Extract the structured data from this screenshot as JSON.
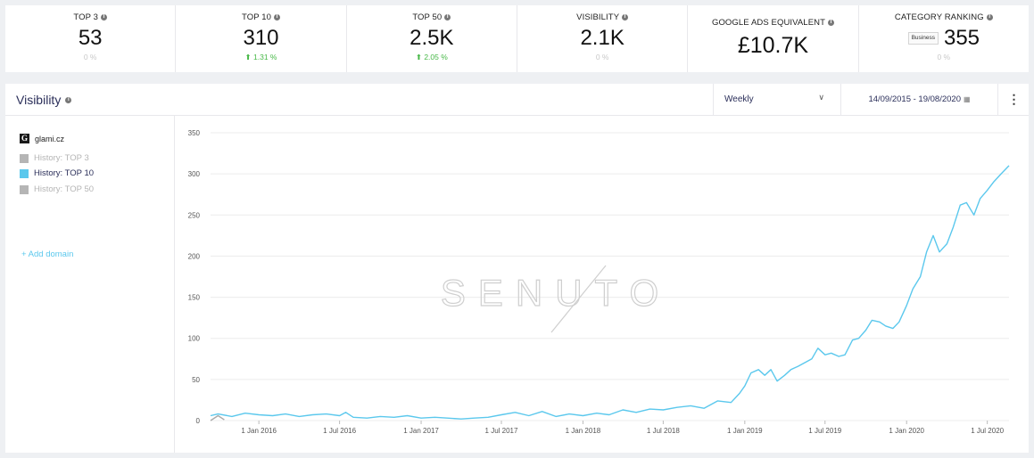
{
  "stats": [
    {
      "label": "TOP 3",
      "value": "53",
      "change": "0 %",
      "trend": "none"
    },
    {
      "label": "TOP 10",
      "value": "310",
      "change": "1.31 %",
      "trend": "up"
    },
    {
      "label": "TOP 50",
      "value": "2.5K",
      "change": "2.05 %",
      "trend": "up"
    },
    {
      "label": "VISIBILITY",
      "value": "2.1K",
      "change": "0 %",
      "trend": "none"
    },
    {
      "label": "GOOGLE ADS EQUIVALENT",
      "value": "£10.7K",
      "change": "",
      "trend": "none"
    },
    {
      "label": "CATEGORY RANKING",
      "value": "355",
      "badge": "Business",
      "change": "0 %",
      "trend": "none"
    }
  ],
  "panel": {
    "title": "Visibility",
    "period": "Weekly",
    "date_range": "14/09/2015 - 19/08/2020"
  },
  "legend": {
    "domain": "glami.cz",
    "domain_icon": "G",
    "items": [
      {
        "label": "History: TOP 3",
        "active": false
      },
      {
        "label": "History: TOP 10",
        "active": true
      },
      {
        "label": "History: TOP 50",
        "active": false
      }
    ],
    "add_domain": "+ Add domain"
  },
  "watermark": "SENUTO",
  "colors": {
    "line": "#5bc8ed",
    "grid": "#ececec",
    "positive": "#47b847",
    "title": "#2b2f5a"
  },
  "chart_data": {
    "type": "line",
    "title": "",
    "xlabel": "",
    "ylabel": "",
    "ylim": [
      0,
      350
    ],
    "yticks": [
      0,
      50,
      100,
      150,
      200,
      250,
      300,
      350
    ],
    "xlim": [
      "2015-09-14",
      "2020-08-19"
    ],
    "xticks": [
      {
        "date": "2016-01-01",
        "label": "1 Jan 2016"
      },
      {
        "date": "2016-07-01",
        "label": "1 Jul 2016"
      },
      {
        "date": "2017-01-01",
        "label": "1 Jan 2017"
      },
      {
        "date": "2017-07-01",
        "label": "1 Jul 2017"
      },
      {
        "date": "2018-01-01",
        "label": "1 Jan 2018"
      },
      {
        "date": "2018-07-01",
        "label": "1 Jul 2018"
      },
      {
        "date": "2019-01-01",
        "label": "1 Jan 2019"
      },
      {
        "date": "2019-07-01",
        "label": "1 Jul 2019"
      },
      {
        "date": "2020-01-01",
        "label": "1 Jan 2020"
      },
      {
        "date": "2020-07-01",
        "label": "1 Jul 2020"
      }
    ],
    "grid": true,
    "series": [
      {
        "name": "History: TOP 10",
        "points": [
          [
            "2015-09-14",
            6
          ],
          [
            "2015-10-01",
            8
          ],
          [
            "2015-11-01",
            5
          ],
          [
            "2015-12-01",
            9
          ],
          [
            "2016-01-01",
            7
          ],
          [
            "2016-02-01",
            6
          ],
          [
            "2016-03-01",
            8
          ],
          [
            "2016-04-01",
            5
          ],
          [
            "2016-05-01",
            7
          ],
          [
            "2016-06-01",
            8
          ],
          [
            "2016-07-01",
            6
          ],
          [
            "2016-07-15",
            10
          ],
          [
            "2016-08-01",
            4
          ],
          [
            "2016-09-01",
            3
          ],
          [
            "2016-10-01",
            5
          ],
          [
            "2016-11-01",
            4
          ],
          [
            "2016-12-01",
            6
          ],
          [
            "2017-01-01",
            3
          ],
          [
            "2017-02-01",
            4
          ],
          [
            "2017-03-01",
            3
          ],
          [
            "2017-04-01",
            2
          ],
          [
            "2017-05-01",
            3
          ],
          [
            "2017-06-01",
            4
          ],
          [
            "2017-07-01",
            7
          ],
          [
            "2017-08-01",
            10
          ],
          [
            "2017-09-01",
            6
          ],
          [
            "2017-10-01",
            11
          ],
          [
            "2017-11-01",
            5
          ],
          [
            "2017-12-01",
            8
          ],
          [
            "2018-01-01",
            6
          ],
          [
            "2018-02-01",
            9
          ],
          [
            "2018-03-01",
            7
          ],
          [
            "2018-04-01",
            13
          ],
          [
            "2018-05-01",
            10
          ],
          [
            "2018-06-01",
            14
          ],
          [
            "2018-07-01",
            13
          ],
          [
            "2018-08-01",
            16
          ],
          [
            "2018-09-01",
            18
          ],
          [
            "2018-10-01",
            15
          ],
          [
            "2018-11-01",
            24
          ],
          [
            "2018-12-01",
            22
          ],
          [
            "2018-12-20",
            33
          ],
          [
            "2019-01-01",
            42
          ],
          [
            "2019-01-15",
            58
          ],
          [
            "2019-02-01",
            62
          ],
          [
            "2019-02-15",
            55
          ],
          [
            "2019-03-01",
            62
          ],
          [
            "2019-03-15",
            48
          ],
          [
            "2019-04-01",
            55
          ],
          [
            "2019-04-15",
            62
          ],
          [
            "2019-05-01",
            66
          ],
          [
            "2019-05-15",
            70
          ],
          [
            "2019-06-01",
            75
          ],
          [
            "2019-06-15",
            88
          ],
          [
            "2019-07-01",
            80
          ],
          [
            "2019-07-15",
            82
          ],
          [
            "2019-08-01",
            78
          ],
          [
            "2019-08-15",
            80
          ],
          [
            "2019-09-01",
            98
          ],
          [
            "2019-09-15",
            100
          ],
          [
            "2019-10-01",
            110
          ],
          [
            "2019-10-15",
            122
          ],
          [
            "2019-11-01",
            120
          ],
          [
            "2019-11-15",
            115
          ],
          [
            "2019-12-01",
            112
          ],
          [
            "2019-12-15",
            120
          ],
          [
            "2020-01-01",
            140
          ],
          [
            "2020-01-15",
            160
          ],
          [
            "2020-02-01",
            175
          ],
          [
            "2020-02-15",
            205
          ],
          [
            "2020-03-01",
            225
          ],
          [
            "2020-03-15",
            205
          ],
          [
            "2020-04-01",
            215
          ],
          [
            "2020-04-15",
            235
          ],
          [
            "2020-05-01",
            262
          ],
          [
            "2020-05-15",
            265
          ],
          [
            "2020-06-01",
            250
          ],
          [
            "2020-06-15",
            270
          ],
          [
            "2020-07-01",
            280
          ],
          [
            "2020-07-15",
            290
          ],
          [
            "2020-08-01",
            300
          ],
          [
            "2020-08-19",
            310
          ]
        ]
      },
      {
        "name": "History: TOP 3",
        "points": [
          [
            "2015-09-14",
            0
          ],
          [
            "2015-10-01",
            6
          ],
          [
            "2015-10-15",
            1
          ]
        ]
      }
    ]
  }
}
